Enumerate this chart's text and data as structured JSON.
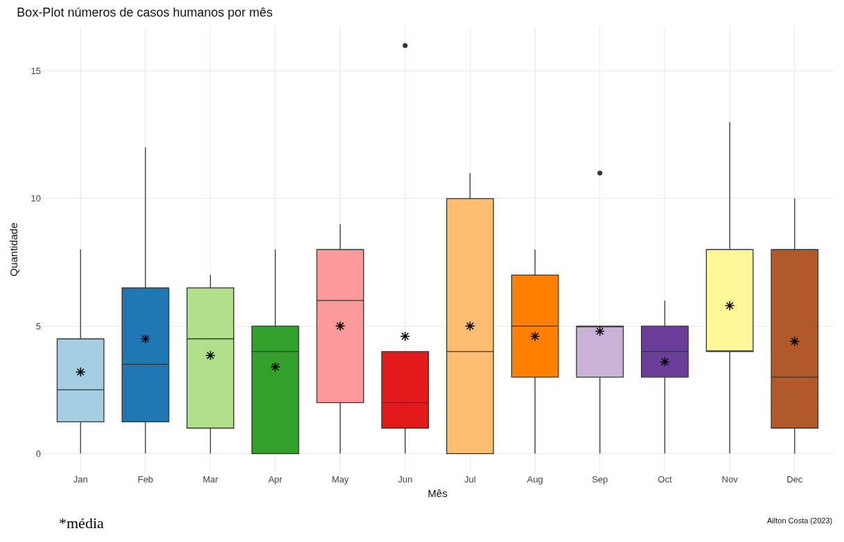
{
  "chart_data": {
    "type": "box",
    "title": "Box-Plot números de casos humanos por mês",
    "xlabel": "Mês",
    "ylabel": "Quantidade",
    "categories": [
      "Jan",
      "Feb",
      "Mar",
      "Apr",
      "May",
      "Jun",
      "Jul",
      "Aug",
      "Sep",
      "Oct",
      "Nov",
      "Dec"
    ],
    "colors": [
      "#a6cee3",
      "#1f78b4",
      "#b2df8a",
      "#33a02c",
      "#fb9a99",
      "#e31a1c",
      "#fdbf6f",
      "#ff7f00",
      "#cab2d6",
      "#6a3d9a",
      "#fff899",
      "#b15928"
    ],
    "boxes": [
      {
        "low": 0,
        "q1": 1.25,
        "median": 2.5,
        "q3": 4.5,
        "high": 8,
        "mean": 3.2
      },
      {
        "low": 0,
        "q1": 1.25,
        "median": 3.5,
        "q3": 6.5,
        "high": 12,
        "mean": 4.5
      },
      {
        "low": 0,
        "q1": 1,
        "median": 4.5,
        "q3": 6.5,
        "high": 7,
        "mean": 3.85
      },
      {
        "low": 0,
        "q1": 0,
        "median": 4,
        "q3": 5,
        "high": 8,
        "mean": 3.4
      },
      {
        "low": 0,
        "q1": 2,
        "median": 6,
        "q3": 8,
        "high": 9,
        "mean": 5.0
      },
      {
        "low": 0,
        "q1": 1,
        "median": 2,
        "q3": 4,
        "high": 4,
        "mean": 4.6,
        "outliers": [
          16
        ]
      },
      {
        "low": 0,
        "q1": 0,
        "median": 4,
        "q3": 10,
        "high": 11,
        "mean": 5.0
      },
      {
        "low": 0,
        "q1": 3,
        "median": 5,
        "q3": 7,
        "high": 8,
        "mean": 4.6
      },
      {
        "low": 0,
        "q1": 3,
        "median": 5,
        "q3": 5,
        "high": 5,
        "mean": 4.8,
        "outliers": [
          11
        ]
      },
      {
        "low": 0,
        "q1": 3,
        "median": 4,
        "q3": 5,
        "high": 6,
        "mean": 3.6
      },
      {
        "low": 0,
        "q1": 4,
        "median": 4,
        "q3": 8,
        "high": 13,
        "mean": 5.8
      },
      {
        "low": 0,
        "q1": 1,
        "median": 3,
        "q3": 8,
        "high": 10,
        "mean": 4.4
      }
    ],
    "ylim": [
      -0.75,
      16.75
    ],
    "yticks": [
      0,
      5,
      10,
      15
    ],
    "grid": true,
    "marker": "star",
    "annotations": [
      "*média",
      "Ailton Costa (2023)"
    ]
  }
}
